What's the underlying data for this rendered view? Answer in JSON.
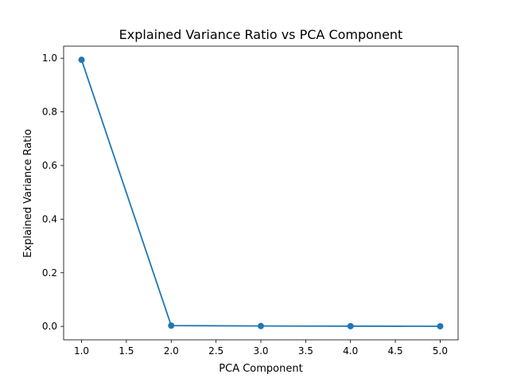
{
  "chart_data": {
    "type": "line",
    "title": "Explained Variance Ratio vs PCA Component",
    "xlabel": "PCA Component",
    "ylabel": "Explained Variance Ratio",
    "x": [
      1,
      2,
      3,
      4,
      5
    ],
    "series": [
      {
        "values": [
          0.994,
          0.003,
          0.0015,
          0.001,
          0.0005
        ],
        "color": "#1f77b4",
        "marker": "circle"
      }
    ],
    "xlim": [
      0.8,
      5.2
    ],
    "ylim": [
      -0.05,
      1.045
    ],
    "xticks": [
      1.0,
      1.5,
      2.0,
      2.5,
      3.0,
      3.5,
      4.0,
      4.5,
      5.0
    ],
    "xtick_labels": [
      "1.0",
      "1.5",
      "2.0",
      "2.5",
      "3.0",
      "3.5",
      "4.0",
      "4.5",
      "5.0"
    ],
    "yticks": [
      0.0,
      0.2,
      0.4,
      0.6,
      0.8,
      1.0
    ],
    "ytick_labels": [
      "0.0",
      "0.2",
      "0.4",
      "0.6",
      "0.8",
      "1.0"
    ],
    "grid": false,
    "legend": false
  }
}
